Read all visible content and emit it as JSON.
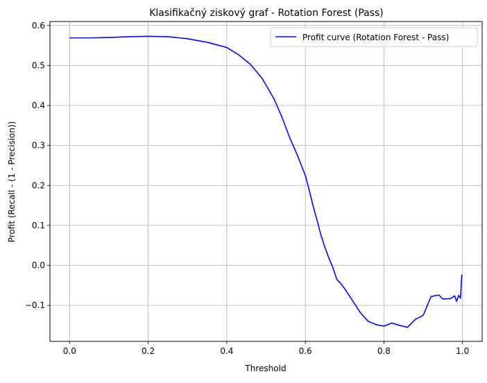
{
  "chart_data": {
    "type": "line",
    "title": "Klasifikačný ziskový graf - Rotation Forest (Pass)",
    "xlabel": "Threshold",
    "ylabel": "Profit (Recall - (1 - Precision))",
    "xlim": [
      -0.05,
      1.05
    ],
    "ylim": [
      -0.19,
      0.61
    ],
    "xticks": [
      0.0,
      0.2,
      0.4,
      0.6,
      0.8,
      1.0
    ],
    "xtick_labels": [
      "0.0",
      "0.2",
      "0.4",
      "0.6",
      "0.8",
      "1.0"
    ],
    "yticks": [
      -0.1,
      0.0,
      0.1,
      0.2,
      0.3,
      0.4,
      0.5,
      0.6
    ],
    "ytick_labels": [
      "−0.1",
      "0.0",
      "0.1",
      "0.2",
      "0.3",
      "0.4",
      "0.5",
      "0.6"
    ],
    "grid": true,
    "legend_position": "top-right",
    "series": [
      {
        "name": "Profit curve (Rotation Forest - Pass)",
        "color": "#0000ff",
        "points": [
          [
            0.0,
            0.569
          ],
          [
            0.05,
            0.569
          ],
          [
            0.1,
            0.57
          ],
          [
            0.15,
            0.572
          ],
          [
            0.2,
            0.573
          ],
          [
            0.25,
            0.572
          ],
          [
            0.3,
            0.567
          ],
          [
            0.35,
            0.558
          ],
          [
            0.4,
            0.545
          ],
          [
            0.43,
            0.527
          ],
          [
            0.46,
            0.503
          ],
          [
            0.49,
            0.468
          ],
          [
            0.52,
            0.417
          ],
          [
            0.54,
            0.372
          ],
          [
            0.56,
            0.32
          ],
          [
            0.58,
            0.275
          ],
          [
            0.6,
            0.225
          ],
          [
            0.61,
            0.188
          ],
          [
            0.62,
            0.148
          ],
          [
            0.63,
            0.112
          ],
          [
            0.64,
            0.075
          ],
          [
            0.65,
            0.045
          ],
          [
            0.66,
            0.018
          ],
          [
            0.67,
            -0.005
          ],
          [
            0.68,
            -0.035
          ],
          [
            0.69,
            -0.045
          ],
          [
            0.7,
            -0.058
          ],
          [
            0.72,
            -0.088
          ],
          [
            0.74,
            -0.118
          ],
          [
            0.76,
            -0.14
          ],
          [
            0.78,
            -0.148
          ],
          [
            0.8,
            -0.152
          ],
          [
            0.82,
            -0.144
          ],
          [
            0.84,
            -0.15
          ],
          [
            0.86,
            -0.155
          ],
          [
            0.88,
            -0.135
          ],
          [
            0.9,
            -0.125
          ],
          [
            0.92,
            -0.078
          ],
          [
            0.94,
            -0.074
          ],
          [
            0.95,
            -0.084
          ],
          [
            0.97,
            -0.083
          ],
          [
            0.98,
            -0.076
          ],
          [
            0.985,
            -0.09
          ],
          [
            0.99,
            -0.075
          ],
          [
            0.995,
            -0.082
          ],
          [
            0.998,
            -0.025
          ],
          [
            1.0,
            -0.024
          ]
        ]
      }
    ]
  }
}
